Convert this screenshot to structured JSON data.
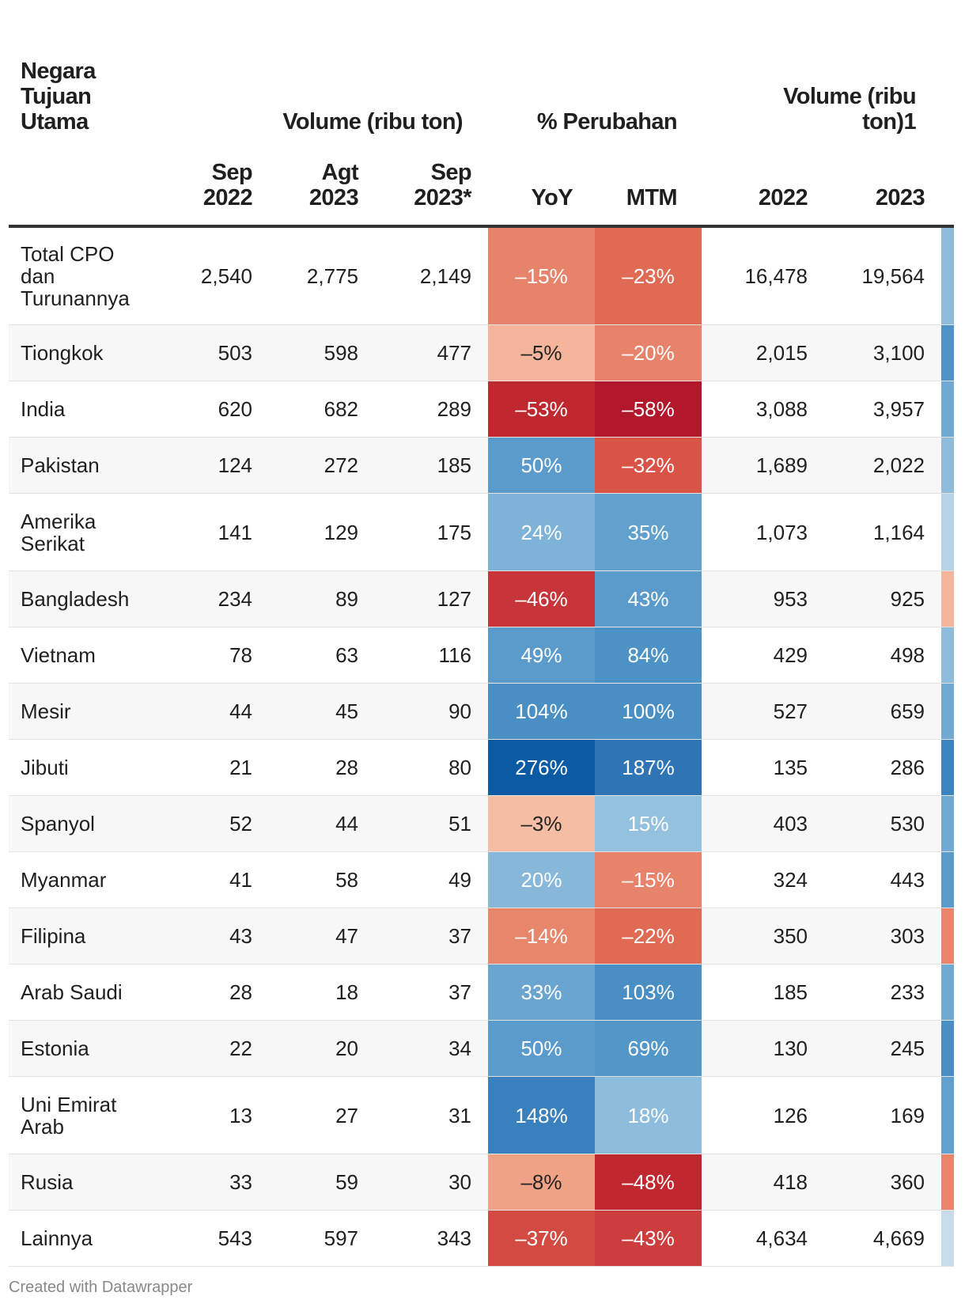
{
  "headers": {
    "country": "Negara\nTujuan\nUtama",
    "volume_group": "Volume (ribu ton)",
    "change_group": "% Perubahan",
    "volume_annual_group": "Volume (ribu\nton)1",
    "sep2022": "Sep\n2022",
    "agt2023": "Agt\n2023",
    "sep2023": "Sep\n2023*",
    "yoy": "YoY",
    "mtm": "MTM",
    "y2022": "2022",
    "y2023": "2023"
  },
  "credit": "Created with Datawrapper",
  "chart_data": {
    "type": "table",
    "columns": [
      "Negara Tujuan Utama",
      "Sep 2022",
      "Agt 2023",
      "Sep 2023*",
      "YoY",
      "MTM",
      "2022",
      "2023"
    ],
    "rows": [
      {
        "country": "Total CPO\ndan\nTurunannya",
        "sep2022": "2,540",
        "agt2023": "2,775",
        "sep2023": "2,149",
        "yoy": "–15%",
        "yoy_val": -15,
        "mtm": "–23%",
        "mtm_val": -23,
        "v2022": "16,478",
        "v2023": "19,564",
        "yoy_color": "#e7836a",
        "mtm_color": "#e06b55",
        "bar_color": "#8fbcdb"
      },
      {
        "country": "Tiongkok",
        "sep2022": "503",
        "agt2023": "598",
        "sep2023": "477",
        "yoy": "–5%",
        "yoy_val": -5,
        "mtm": "–20%",
        "mtm_val": -20,
        "v2022": "2,015",
        "v2023": "3,100",
        "yoy_color": "#f4b59a",
        "mtm_color": "#e7836a",
        "bar_color": "#4f93c6"
      },
      {
        "country": "India",
        "sep2022": "620",
        "agt2023": "682",
        "sep2023": "289",
        "yoy": "–53%",
        "yoy_val": -53,
        "mtm": "–58%",
        "mtm_val": -58,
        "v2022": "3,088",
        "v2023": "3,957",
        "yoy_color": "#c0282f",
        "mtm_color": "#b2182b",
        "bar_color": "#71a9d3"
      },
      {
        "country": "Pakistan",
        "sep2022": "124",
        "agt2023": "272",
        "sep2023": "185",
        "yoy": "50%",
        "yoy_val": 50,
        "mtm": "–32%",
        "mtm_val": -32,
        "v2022": "1,689",
        "v2023": "2,022",
        "yoy_color": "#5b9bcb",
        "mtm_color": "#d95347",
        "bar_color": "#8fbcdb"
      },
      {
        "country": "Amerika\nSerikat",
        "sep2022": "141",
        "agt2023": "129",
        "sep2023": "175",
        "yoy": "24%",
        "yoy_val": 24,
        "mtm": "35%",
        "mtm_val": 35,
        "v2022": "1,073",
        "v2023": "1,164",
        "yoy_color": "#7fb2d7",
        "mtm_color": "#62a0cd",
        "bar_color": "#b5d2e6"
      },
      {
        "country": "Bangladesh",
        "sep2022": "234",
        "agt2023": "89",
        "sep2023": "127",
        "yoy": "–46%",
        "yoy_val": -46,
        "mtm": "43%",
        "mtm_val": 43,
        "v2022": "953",
        "v2023": "925",
        "yoy_color": "#c7343a",
        "mtm_color": "#5b9bcb",
        "bar_color": "#f4b59a"
      },
      {
        "country": "Vietnam",
        "sep2022": "78",
        "agt2023": "63",
        "sep2023": "116",
        "yoy": "49%",
        "yoy_val": 49,
        "mtm": "84%",
        "mtm_val": 84,
        "v2022": "429",
        "v2023": "498",
        "yoy_color": "#5b9bcb",
        "mtm_color": "#4d92c5",
        "bar_color": "#8fbcdb"
      },
      {
        "country": "Mesir",
        "sep2022": "44",
        "agt2023": "45",
        "sep2023": "90",
        "yoy": "104%",
        "yoy_val": 104,
        "mtm": "100%",
        "mtm_val": 100,
        "v2022": "527",
        "v2023": "659",
        "yoy_color": "#4a8fc3",
        "mtm_color": "#4a8fc3",
        "bar_color": "#71a9d3"
      },
      {
        "country": "Jibuti",
        "sep2022": "21",
        "agt2023": "28",
        "sep2023": "80",
        "yoy": "276%",
        "yoy_val": 276,
        "mtm": "187%",
        "mtm_val": 187,
        "v2022": "135",
        "v2023": "286",
        "yoy_color": "#0b5ba4",
        "mtm_color": "#2f75b6",
        "bar_color": "#3c83bf"
      },
      {
        "country": "Spanyol",
        "sep2022": "52",
        "agt2023": "44",
        "sep2023": "51",
        "yoy": "–3%",
        "yoy_val": -3,
        "mtm": "15%",
        "mtm_val": 15,
        "v2022": "403",
        "v2023": "530",
        "yoy_color": "#f5bda3",
        "mtm_color": "#94c1de",
        "bar_color": "#71a9d3"
      },
      {
        "country": "Myanmar",
        "sep2022": "41",
        "agt2023": "58",
        "sep2023": "49",
        "yoy": "20%",
        "yoy_val": 20,
        "mtm": "–15%",
        "mtm_val": -15,
        "v2022": "324",
        "v2023": "443",
        "yoy_color": "#87b8da",
        "mtm_color": "#e7836a",
        "bar_color": "#5b9bcb"
      },
      {
        "country": "Filipina",
        "sep2022": "43",
        "agt2023": "47",
        "sep2023": "37",
        "yoy": "–14%",
        "yoy_val": -14,
        "mtm": "–22%",
        "mtm_val": -22,
        "v2022": "350",
        "v2023": "303",
        "yoy_color": "#e8866c",
        "mtm_color": "#e06b55",
        "bar_color": "#e8866c"
      },
      {
        "country": "Arab Saudi",
        "sep2022": "28",
        "agt2023": "18",
        "sep2023": "37",
        "yoy": "33%",
        "yoy_val": 33,
        "mtm": "103%",
        "mtm_val": 103,
        "v2022": "185",
        "v2023": "233",
        "yoy_color": "#6aa5d0",
        "mtm_color": "#4a8fc3",
        "bar_color": "#71a9d3"
      },
      {
        "country": "Estonia",
        "sep2022": "22",
        "agt2023": "20",
        "sep2023": "34",
        "yoy": "50%",
        "yoy_val": 50,
        "mtm": "69%",
        "mtm_val": 69,
        "v2022": "130",
        "v2023": "245",
        "yoy_color": "#5b9bcb",
        "mtm_color": "#5297c8",
        "bar_color": "#4a8fc3"
      },
      {
        "country": "Uni Emirat\nArab",
        "sep2022": "13",
        "agt2023": "27",
        "sep2023": "31",
        "yoy": "148%",
        "yoy_val": 148,
        "mtm": "18%",
        "mtm_val": 18,
        "v2022": "126",
        "v2023": "169",
        "yoy_color": "#3a80bd",
        "mtm_color": "#8dbcdc",
        "bar_color": "#62a0cd"
      },
      {
        "country": "Rusia",
        "sep2022": "33",
        "agt2023": "59",
        "sep2023": "30",
        "yoy": "–8%",
        "yoy_val": -8,
        "mtm": "–48%",
        "mtm_val": -48,
        "v2022": "418",
        "v2023": "360",
        "yoy_color": "#f0a286",
        "mtm_color": "#c0282f",
        "bar_color": "#e8866c"
      },
      {
        "country": "Lainnya",
        "sep2022": "543",
        "agt2023": "597",
        "sep2023": "343",
        "yoy": "–37%",
        "yoy_val": -37,
        "mtm": "–43%",
        "mtm_val": -43,
        "v2022": "4,634",
        "v2023": "4,669",
        "yoy_color": "#d34a43",
        "mtm_color": "#cc3d3d",
        "bar_color": "#c6dcea"
      }
    ]
  }
}
